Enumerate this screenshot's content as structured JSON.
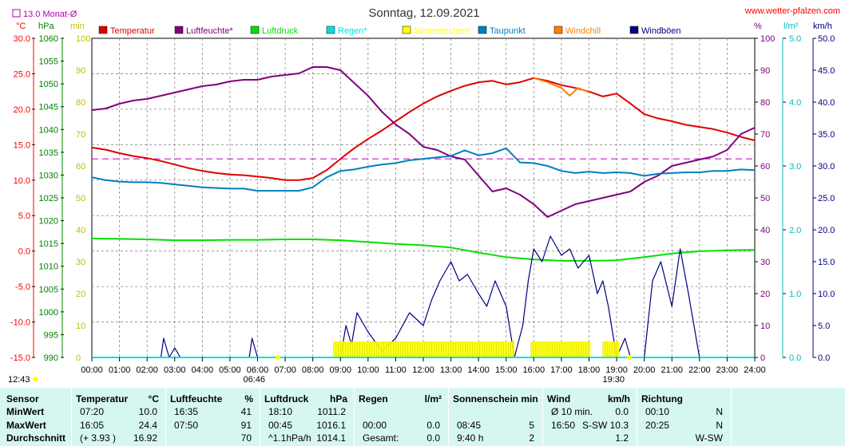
{
  "title": "Sonntag, 12.09.2021",
  "brand": "www.wetter-pfalzen.com",
  "month_avg_label": "13.0 Monat-Ø",
  "axis_units": {
    "temp": "°C",
    "pressure": "hPa",
    "minutes": "min",
    "percent": "%",
    "rain": "l/m²",
    "wind": "km/h"
  },
  "sunrise": "06:46",
  "sunset": "19:30",
  "left_time": "12:43",
  "legend": [
    {
      "label": "Temperatur",
      "color": "#e00000"
    },
    {
      "label": "Luftfeuchte*",
      "color": "#800080"
    },
    {
      "label": "Luftdruck",
      "color": "#00e000"
    },
    {
      "label": "Regen*",
      "color": "#00e0e0"
    },
    {
      "label": "Sonnenschein",
      "color": "#ffff00"
    },
    {
      "label": "Taupunkt",
      "color": "#0080c0"
    },
    {
      "label": "Windchill",
      "color": "#ff8000"
    },
    {
      "label": "Windböen",
      "color": "#000080"
    }
  ],
  "chart_data": {
    "type": "line",
    "x_ticks": [
      "00:00",
      "01:00",
      "02:00",
      "03:00",
      "04:00",
      "05:00",
      "06:00",
      "07:00",
      "08:00",
      "09:00",
      "10:00",
      "11:00",
      "12:00",
      "13:00",
      "14:00",
      "15:00",
      "16:00",
      "17:00",
      "18:00",
      "19:00",
      "20:00",
      "21:00",
      "22:00",
      "23:00",
      "24:00"
    ],
    "axes": {
      "temp": {
        "label": "°C",
        "range": [
          -15,
          30
        ],
        "ticks": [
          "30.0",
          "25.0",
          "20.0",
          "15.0",
          "10.0",
          "5.0",
          "0.0",
          "-5.0",
          "-10.0",
          "-15.0"
        ],
        "color": "#ff0000"
      },
      "pressure": {
        "label": "hPa",
        "range": [
          990,
          1060
        ],
        "ticks": [
          "1060",
          "1055",
          "1050",
          "1045",
          "1040",
          "1035",
          "1030",
          "1025",
          "1020",
          "1015",
          "1010",
          "1005",
          "1000",
          "995",
          "990"
        ],
        "color": "#008000"
      },
      "minutes": {
        "label": "min",
        "range": [
          0,
          100
        ],
        "ticks": [
          "100",
          "90",
          "80",
          "70",
          "60",
          "50",
          "40",
          "30",
          "20",
          "10",
          "0"
        ],
        "color": "#c0c000"
      },
      "percent": {
        "label": "%",
        "range": [
          0,
          100
        ],
        "ticks": [
          "100",
          "90",
          "80",
          "70",
          "60",
          "50",
          "40",
          "30",
          "20",
          "10",
          "0"
        ],
        "color": "#800080"
      },
      "rain": {
        "label": "l/m²",
        "range": [
          0,
          5
        ],
        "ticks": [
          "5.0",
          "4.0",
          "3.0",
          "2.0",
          "1.0",
          "0.0"
        ],
        "color": "#00c0c0"
      },
      "wind": {
        "label": "km/h",
        "range": [
          0,
          50
        ],
        "ticks": [
          "50.0",
          "45.0",
          "40.0",
          "35.0",
          "30.0",
          "25.0",
          "20.0",
          "15.0",
          "10.0",
          "5.0",
          "0.0"
        ],
        "color": "#000080"
      }
    },
    "month_avg_temp": 13.0,
    "series": [
      {
        "name": "Temperatur",
        "axis": "temp",
        "color": "#e00000",
        "x": [
          0,
          0.5,
          1,
          1.5,
          2,
          2.5,
          3,
          3.5,
          4,
          4.5,
          5,
          5.5,
          6,
          6.5,
          7,
          7.5,
          8,
          8.5,
          9,
          9.5,
          10,
          10.5,
          11,
          11.5,
          12,
          12.5,
          13,
          13.5,
          14,
          14.5,
          15,
          15.5,
          16,
          16.5,
          17,
          17.5,
          18,
          18.5,
          19,
          19.5,
          20,
          20.5,
          21,
          21.5,
          22,
          22.5,
          23,
          23.5,
          24
        ],
        "y": [
          14.6,
          14.3,
          13.8,
          13.4,
          13.1,
          12.7,
          12.2,
          11.7,
          11.3,
          11.0,
          10.8,
          10.7,
          10.5,
          10.3,
          10.0,
          10.0,
          10.3,
          11.4,
          13.0,
          14.5,
          15.8,
          17.0,
          18.3,
          19.6,
          20.8,
          21.8,
          22.6,
          23.3,
          23.8,
          24.0,
          23.5,
          23.8,
          24.4,
          24.0,
          23.4,
          23.0,
          22.5,
          21.8,
          22.2,
          20.8,
          19.3,
          18.7,
          18.3,
          17.8,
          17.5,
          17.2,
          16.7,
          16.1,
          15.6
        ]
      },
      {
        "name": "Windchill",
        "axis": "temp",
        "color": "#ff8000",
        "x": [
          16,
          16.5,
          17,
          17.3,
          17.6,
          18
        ],
        "y": [
          24.4,
          23.8,
          23.0,
          21.9,
          23.0,
          22.4
        ]
      },
      {
        "name": "Luftfeuchte*",
        "axis": "percent",
        "color": "#800080",
        "x": [
          0,
          0.5,
          1,
          1.5,
          2,
          2.5,
          3,
          3.5,
          4,
          4.5,
          5,
          5.5,
          6,
          6.5,
          7,
          7.5,
          8,
          8.5,
          9,
          9.5,
          10,
          10.5,
          11,
          11.5,
          12,
          12.5,
          13,
          13.5,
          14,
          14.5,
          15,
          15.5,
          16,
          16.5,
          17,
          17.5,
          18,
          18.5,
          19,
          19.5,
          20,
          20.5,
          21,
          21.5,
          22,
          22.5,
          23,
          23.5,
          24
        ],
        "y": [
          77.5,
          78,
          79.5,
          80.5,
          81,
          82,
          83,
          84,
          85,
          85.5,
          86.5,
          87,
          87,
          88,
          88.5,
          89,
          91,
          91,
          90,
          86,
          82,
          77,
          73,
          70,
          66,
          65,
          63,
          62,
          57,
          52,
          53,
          51,
          48,
          44,
          46,
          48,
          49,
          50,
          51,
          52,
          55,
          57,
          60,
          61,
          62,
          63,
          65,
          70,
          72
        ]
      },
      {
        "name": "Taupunkt",
        "axis": "temp",
        "color": "#0080c0",
        "x": [
          0,
          0.5,
          1,
          1.5,
          2,
          2.5,
          3,
          3.5,
          4,
          4.5,
          5,
          5.5,
          6,
          6.5,
          7,
          7.5,
          8,
          8.5,
          9,
          9.5,
          10,
          10.5,
          11,
          11.5,
          12,
          12.5,
          13,
          13.5,
          14,
          14.5,
          15,
          15.5,
          16,
          16.5,
          17,
          17.5,
          18,
          18.5,
          19,
          19.5,
          20,
          20.5,
          21,
          21.5,
          22,
          22.5,
          23,
          23.5,
          24
        ],
        "y": [
          10.4,
          10.0,
          9.8,
          9.7,
          9.7,
          9.6,
          9.4,
          9.2,
          9.0,
          8.9,
          8.8,
          8.8,
          8.5,
          8.5,
          8.5,
          8.5,
          9.0,
          10.4,
          11.3,
          11.5,
          11.9,
          12.2,
          12.4,
          12.8,
          13.0,
          13.2,
          13.4,
          14.2,
          13.5,
          13.8,
          14.5,
          12.5,
          12.4,
          12.0,
          11.3,
          11.0,
          11.2,
          11.0,
          11.1,
          11.0,
          10.6,
          10.9,
          11.0,
          11.1,
          11.1,
          11.3,
          11.3,
          11.5,
          11.4
        ]
      },
      {
        "name": "Luftdruck",
        "axis": "pressure",
        "color": "#00e000",
        "x": [
          0,
          1,
          2,
          3,
          4,
          5,
          6,
          7,
          8,
          9,
          10,
          11,
          12,
          13,
          14,
          15,
          16,
          17,
          18,
          19,
          20,
          21,
          22,
          23,
          24
        ],
        "y": [
          1016.1,
          1016.0,
          1015.9,
          1015.7,
          1015.7,
          1015.8,
          1015.8,
          1015.9,
          1015.9,
          1015.7,
          1015.3,
          1014.9,
          1014.6,
          1014.1,
          1013.0,
          1012.0,
          1011.5,
          1011.2,
          1011.2,
          1011.3,
          1012.0,
          1012.8,
          1013.3,
          1013.5,
          1013.6
        ]
      },
      {
        "name": "Windböen",
        "axis": "wind",
        "color": "#000080",
        "x": [
          0,
          2.5,
          2.6,
          2.8,
          3,
          3.2,
          5.7,
          5.8,
          6,
          9,
          9.2,
          9.4,
          9.6,
          10,
          10.5,
          11,
          11.5,
          12,
          12.3,
          12.6,
          13,
          13.3,
          13.6,
          14,
          14.3,
          14.6,
          15,
          15.3,
          15.6,
          15.8,
          16,
          16.3,
          16.6,
          17,
          17.3,
          17.6,
          18,
          18.3,
          18.5,
          18.7,
          19,
          19.3,
          19.5,
          20,
          20.3,
          20.6,
          21,
          21.3,
          21.6,
          22,
          24
        ],
        "y": [
          0,
          0,
          3,
          0,
          1.5,
          0,
          0,
          3,
          0,
          0,
          5,
          2,
          7,
          4,
          1,
          3,
          7,
          5,
          9,
          12,
          15,
          12,
          13,
          10,
          8,
          12,
          8,
          0,
          5,
          12,
          17,
          15,
          19,
          16,
          17,
          14,
          16,
          10,
          12,
          8,
          0,
          3,
          0,
          0,
          12,
          15,
          8,
          17,
          10,
          0,
          0
        ]
      },
      {
        "name": "Sonnenschein",
        "axis": "minutes",
        "color": "#ffff00",
        "bands": [
          [
            8.75,
            15.3
          ],
          [
            15.9,
            18.05
          ],
          [
            18.5,
            19.1
          ]
        ]
      },
      {
        "name": "Regen*",
        "axis": "rain",
        "color": "#00e0e0",
        "x": [
          0,
          24
        ],
        "y": [
          0,
          0
        ]
      }
    ]
  },
  "stats": {
    "col_sensor": {
      "title": "Sensor",
      "rows": [
        "MinWert",
        "MaxWert",
        "Durchschnitt"
      ]
    },
    "col_temp": {
      "title": "Temperatur",
      "unit": "°C",
      "rows": [
        [
          "07:20",
          "10.0"
        ],
        [
          "16:05",
          "24.4"
        ],
        [
          "(+ 3.93 )",
          "16.92"
        ]
      ]
    },
    "col_hum": {
      "title": "Luftfeuchte",
      "unit": "%",
      "rows": [
        [
          "16:35",
          "41"
        ],
        [
          "07:50",
          "91"
        ],
        [
          "",
          "70"
        ]
      ]
    },
    "col_press": {
      "title": "Luftdruck",
      "unit": "hPa",
      "rows": [
        [
          "18:10",
          "1011.2"
        ],
        [
          "00:45",
          "1016.1"
        ],
        [
          "^1.1hPa/h",
          "1014.1"
        ]
      ]
    },
    "col_rain": {
      "title": "Regen",
      "unit": "l/m²",
      "rows": [
        [
          "",
          ""
        ],
        [
          "00:00",
          "0.0"
        ],
        [
          "Gesamt:",
          "0.0"
        ]
      ]
    },
    "col_sun": {
      "title": "Sonnenschein min",
      "unit": "",
      "rows": [
        [
          "",
          ""
        ],
        [
          "08:45",
          "5"
        ],
        [
          "9:40 h",
          "2"
        ]
      ]
    },
    "col_wind": {
      "title": "Wind",
      "unit": "km/h",
      "rows": [
        [
          "Ø 10 min.",
          "0.0"
        ],
        [
          "16:50",
          "S-SW 10.3"
        ],
        [
          "",
          "1.2"
        ]
      ]
    },
    "col_dir": {
      "title": "Richtung",
      "unit": "",
      "rows": [
        [
          "00:10",
          "N"
        ],
        [
          "20:25",
          "N"
        ],
        [
          "",
          "W-SW"
        ]
      ]
    }
  }
}
